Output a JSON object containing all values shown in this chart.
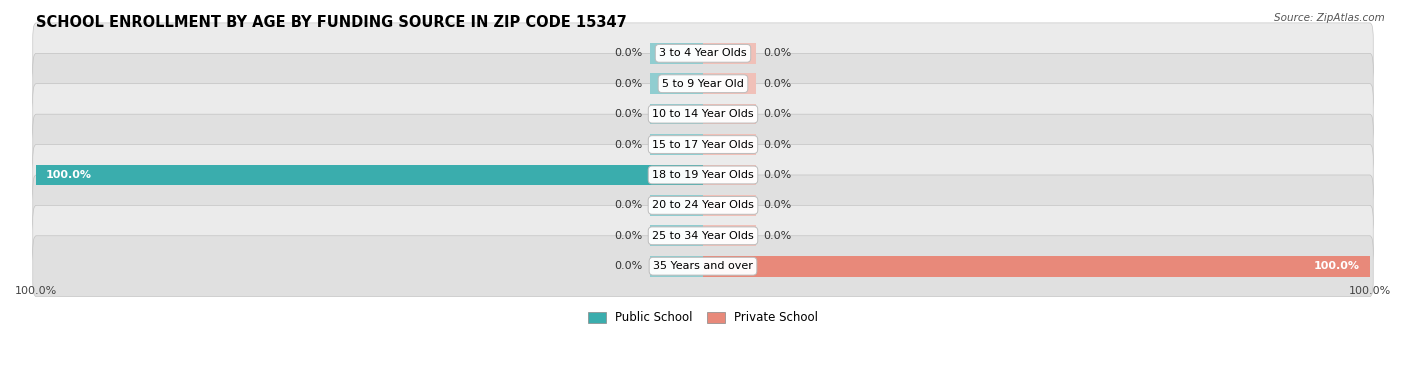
{
  "title": "SCHOOL ENROLLMENT BY AGE BY FUNDING SOURCE IN ZIP CODE 15347",
  "source": "Source: ZipAtlas.com",
  "categories": [
    "3 to 4 Year Olds",
    "5 to 9 Year Old",
    "10 to 14 Year Olds",
    "15 to 17 Year Olds",
    "18 to 19 Year Olds",
    "20 to 24 Year Olds",
    "25 to 34 Year Olds",
    "35 Years and over"
  ],
  "public_values": [
    0.0,
    0.0,
    0.0,
    0.0,
    100.0,
    0.0,
    0.0,
    0.0
  ],
  "private_values": [
    0.0,
    0.0,
    0.0,
    0.0,
    0.0,
    0.0,
    0.0,
    100.0
  ],
  "public_color": "#3AADAD",
  "public_stub_color": "#90CDD0",
  "private_color": "#E8897A",
  "private_stub_color": "#F0C0B8",
  "public_label": "Public School",
  "private_label": "Private School",
  "row_colors": [
    "#EBEBEB",
    "#E0E0E0"
  ],
  "label_font_size": 8.0,
  "title_font_size": 10.5,
  "axis_label_font_size": 8.0,
  "x_axis_left_label": "100.0%",
  "x_axis_right_label": "100.0%"
}
